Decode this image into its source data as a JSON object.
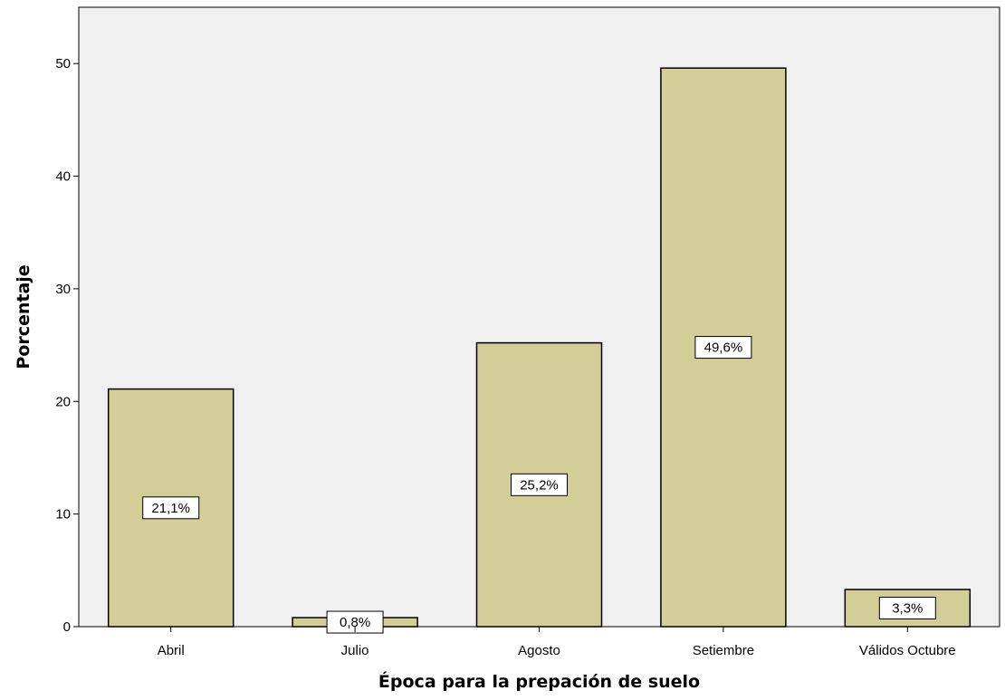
{
  "chart_data": {
    "type": "bar",
    "title": "",
    "xlabel": "Época para la prepación de suelo",
    "ylabel": "Porcentaje",
    "categories": [
      "Abril",
      "Julio",
      "Agosto",
      "Setiembre",
      "Válidos Octubre"
    ],
    "values": [
      21.1,
      0.8,
      25.2,
      49.6,
      3.3
    ],
    "data_labels": [
      "21,1%",
      "0,8%",
      "25,2%",
      "49,6%",
      "3,3%"
    ],
    "yticks": [
      0,
      10,
      20,
      30,
      40,
      50
    ],
    "ylim": [
      0,
      55
    ],
    "grid": false,
    "colors": {
      "bar_fill": "#d3ce97",
      "bar_stroke": "#000000",
      "plot_background": "#f0f0f0",
      "label_box": "#ffffff"
    }
  }
}
